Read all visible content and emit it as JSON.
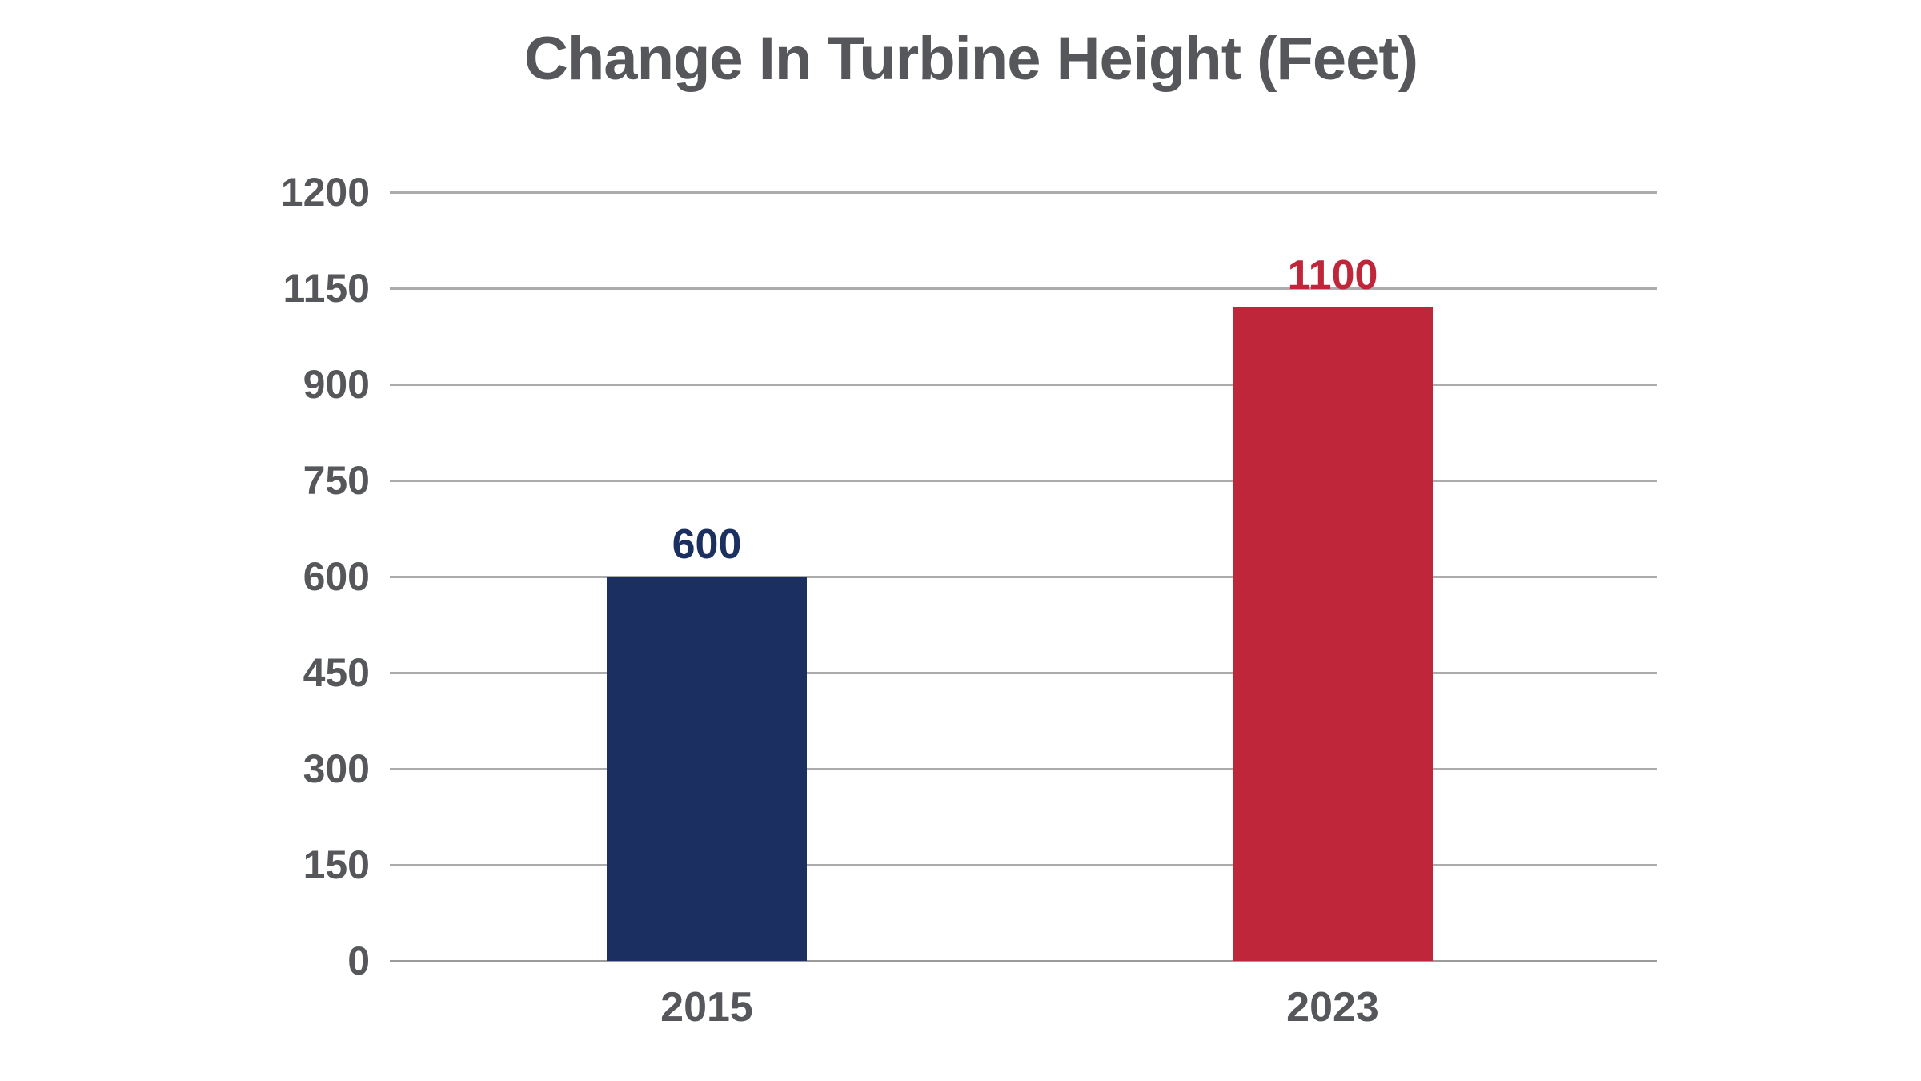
{
  "page": {
    "background_color": "#ffffff",
    "text_color": "#56575A",
    "grid_color": "#ACACAC"
  },
  "chart_data": {
    "type": "bar",
    "title": "Change In Turbine Height (Feet)",
    "categories": [
      "2015",
      "2023"
    ],
    "values": [
      600,
      1100
    ],
    "value_labels": [
      "600",
      "1100"
    ],
    "bar_colors": [
      "#1B3060",
      "#C02639"
    ],
    "value_label_colors": [
      "#1B3060",
      "#C02639"
    ],
    "ytick_labels": [
      "0",
      "150",
      "300",
      "450",
      "600",
      "750",
      "900",
      "1150",
      "1200"
    ],
    "ytick_values": [
      0,
      150,
      300,
      450,
      600,
      750,
      900,
      1150,
      1200
    ],
    "xlabel": "",
    "ylabel": "",
    "grid": "horizontal gridlines on, no vertical axis line",
    "legend": "none",
    "axis_note": "y axis tick labels are evenly spaced but non-linear (jump from 900 to 1150), making the 1100 bar top out just below the 1150 gridline"
  }
}
